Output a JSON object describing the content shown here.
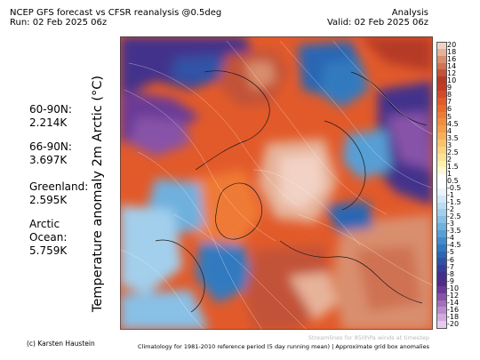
{
  "header": {
    "title_left": "NCEP GFS forecast vs CFSR reanalysis @0.5deg",
    "run": "Run: 02 Feb 2025 06z",
    "title_right": "Analysis",
    "valid": "Valid: 02 Feb 2025 06z"
  },
  "stats": [
    {
      "region": "60-90N:",
      "value": "2.214K"
    },
    {
      "region": "66-90N:",
      "value": "3.697K"
    },
    {
      "region": "Greenland:",
      "value": "2.595K"
    },
    {
      "region": "Arctic",
      "region2": "Ocean:",
      "value": "5.759K"
    }
  ],
  "ylabel": "Temperature anomaly 2m Arctic (°C)",
  "colorbar": {
    "labels": [
      "20",
      "18",
      "16",
      "14",
      "12",
      "10",
      "9",
      "8",
      "7",
      "6",
      "5",
      "4.5",
      "4",
      "3.5",
      "3",
      "2.5",
      "2",
      "1.5",
      "1",
      "0.5",
      "-0.5",
      "-1",
      "-1.5",
      "-2",
      "-2.5",
      "-3",
      "-3.5",
      "-4",
      "-4.5",
      "-5",
      "-6",
      "-7",
      "-8",
      "-9",
      "-10",
      "-12",
      "-14",
      "-16",
      "-18",
      "-20"
    ],
    "colors": [
      "#f2d2c4",
      "#e6b299",
      "#d98f6e",
      "#cf7252",
      "#c25238",
      "#b53a28",
      "#c43a26",
      "#d44a28",
      "#e25a2a",
      "#ea6a2e",
      "#ef7a35",
      "#f28c3e",
      "#f59d4a",
      "#f7b059",
      "#f9c36b",
      "#fbd47f",
      "#fde395",
      "#fef0b0",
      "#fff8d2",
      "#ffffff",
      "#ffffff",
      "#e9f4fb",
      "#d3e8f6",
      "#bbdcf1",
      "#a2cfec",
      "#89c0e6",
      "#70b0de",
      "#579fd5",
      "#428ccb",
      "#317abf",
      "#2c66b3",
      "#3052a6",
      "#383e98",
      "#42318c",
      "#4f2c88",
      "#6a3a96",
      "#8753a8",
      "#a26fba",
      "#bb8ccc",
      "#d2aade",
      "#e6cbee"
    ]
  },
  "footer": {
    "credit": "(c) Karsten Haustein",
    "climatology": "Climatology for 1981-2010 reference period (5 day running mean) | Approximate grid box anomalies",
    "streamline_note": "Streamlines for 850hPa winds at timestep"
  }
}
